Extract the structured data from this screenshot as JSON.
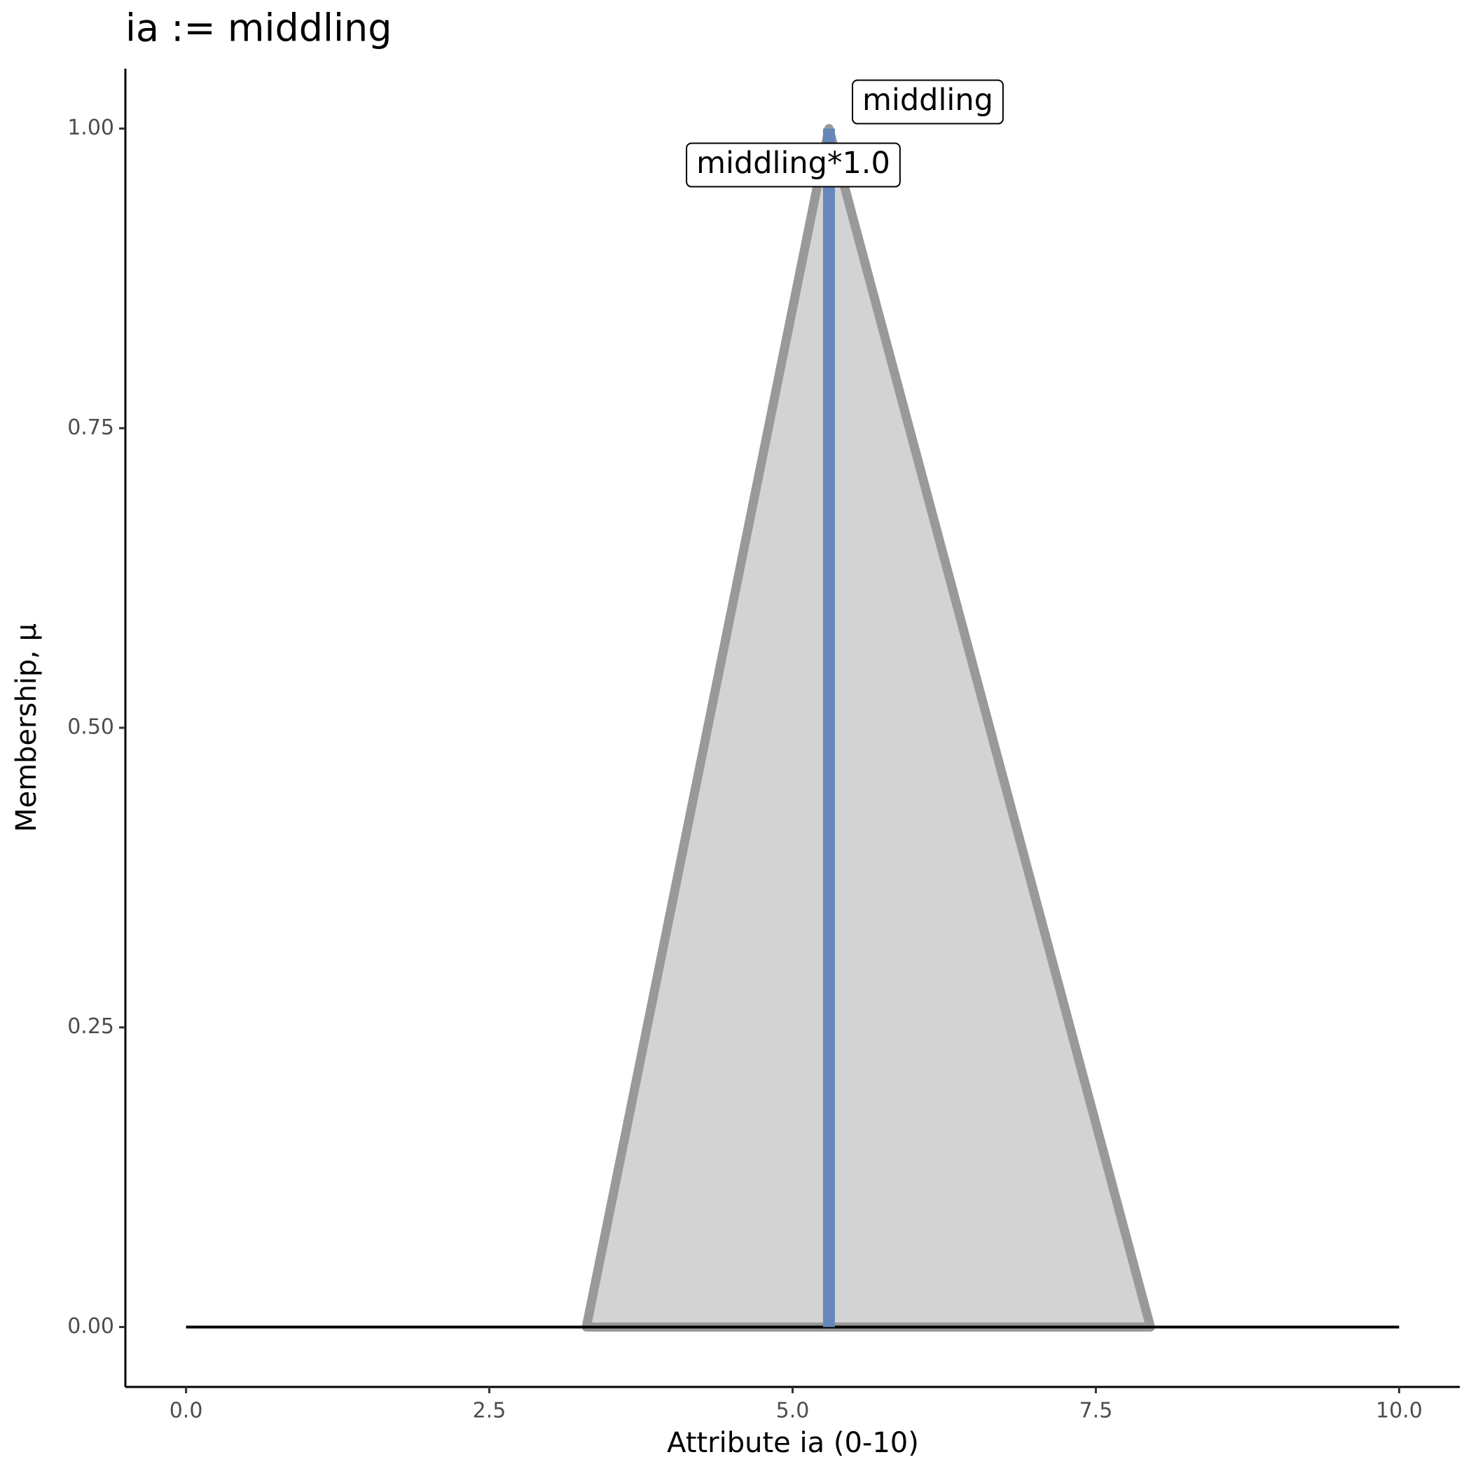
{
  "chart_data": {
    "type": "area",
    "title": "ia := middling",
    "x_label": "Attribute ia (0-10)",
    "y_label": "Membership, μ",
    "series": [
      {
        "name": "middling",
        "color": "#999999",
        "fill": "#d3d3d3",
        "x": [
          3.3,
          5.3,
          7.95
        ],
        "values": [
          0,
          1,
          0
        ]
      }
    ],
    "reference_line": {
      "label": "middling*1.0",
      "x": 5.3,
      "y": 1,
      "color": "#6587ba"
    },
    "base_line": {
      "x": [
        0,
        10
      ],
      "values": [
        0,
        0
      ],
      "color": "#000000"
    },
    "xlim": [
      -0.5,
      10.5
    ],
    "ylim": [
      -0.05,
      1.05
    ],
    "xticks": [
      {
        "value": 0,
        "label": "0.0"
      },
      2.5,
      {
        "value": 5,
        "label": "5.0"
      },
      7.5,
      {
        "value": 10,
        "label": "10.0"
      }
    ],
    "yticks": [
      {
        "value": 0,
        "label": "0.00"
      },
      {
        "value": 0.25,
        "label": "0.25"
      },
      {
        "value": 0.5,
        "label": "0.50"
      },
      {
        "value": 0.75,
        "label": "0.75"
      },
      {
        "value": 1,
        "label": "1.00"
      }
    ],
    "grid": false
  }
}
